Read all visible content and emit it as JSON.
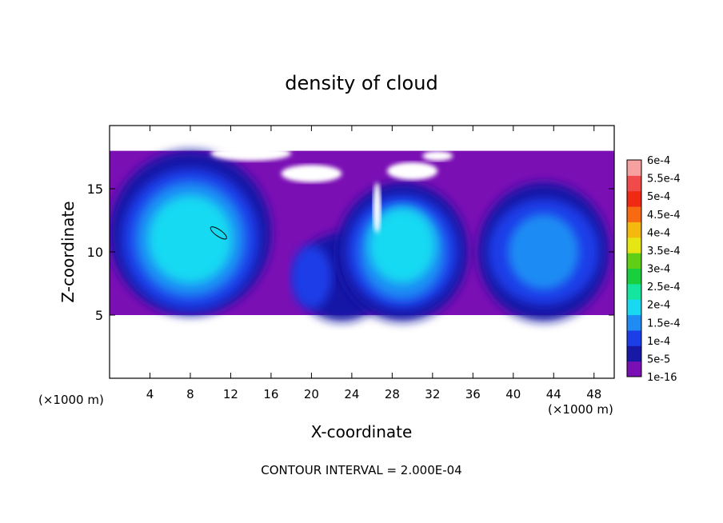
{
  "chart_data": {
    "type": "heatmap",
    "title": "density of cloud",
    "xlabel": "X-coordinate",
    "ylabel": "Z-coordinate",
    "x_unit": "(×1000 m)",
    "x_unit_right": "(×1000 m)",
    "xlim": [
      0,
      50
    ],
    "ylim": [
      0,
      20
    ],
    "x_ticks": [
      4,
      8,
      12,
      16,
      20,
      24,
      28,
      32,
      36,
      40,
      44,
      48
    ],
    "y_ticks": [
      5,
      10,
      15
    ],
    "footer": "CONTOUR INTERVAL = 2.000E-04",
    "colorbar": {
      "labels": [
        "1e-16",
        "5e-5",
        "1e-4",
        "1.5e-4",
        "2e-4",
        "2.5e-4",
        "3e-4",
        "3.5e-4",
        "4e-4",
        "4.5e-4",
        "5e-4",
        "5.5e-4",
        "6e-4"
      ],
      "colors": [
        "#7a0fb4",
        "#1818a6",
        "#1c3ee8",
        "#1f8cf4",
        "#19d9f2",
        "#14e6a0",
        "#19cf3d",
        "#5ecf14",
        "#e6e614",
        "#f4b80f",
        "#f76a11",
        "#f02a12",
        "#f04a4a",
        "#f7a0a0"
      ]
    },
    "cloud_region": {
      "x_range": [
        0,
        50
      ],
      "z_range": [
        5,
        18
      ]
    },
    "cloud_cells": [
      {
        "center": [
          8,
          11
        ],
        "peak": "2e-4"
      },
      {
        "center": [
          29,
          10.5
        ],
        "peak": "2e-4"
      },
      {
        "center": [
          43,
          10
        ],
        "peak": "1.5e-4"
      }
    ],
    "colors": {
      "background": "#ffffff",
      "axes": "#000000"
    }
  }
}
